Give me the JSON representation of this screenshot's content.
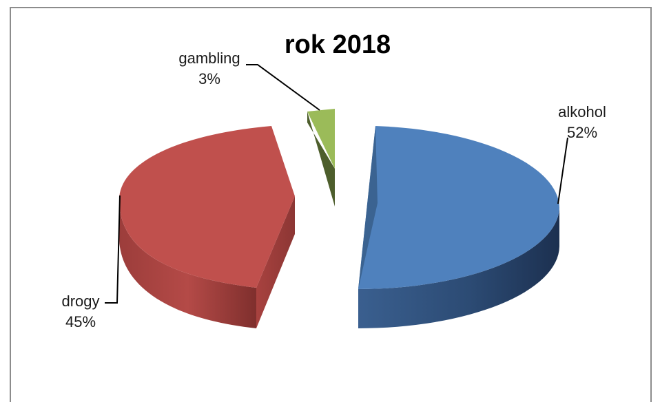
{
  "chart_data": {
    "type": "pie",
    "title": "rok 2018",
    "style": "3d-exploded",
    "slices": [
      {
        "label": "alkohol",
        "value": 52,
        "value_label": "52%",
        "color": "#4f81bd"
      },
      {
        "label": "drogy",
        "value": 45,
        "value_label": "45%",
        "color": "#c0504d"
      },
      {
        "label": "gambling",
        "value": 3,
        "value_label": "3%",
        "color": "#9bbb59"
      }
    ],
    "legend": "none"
  }
}
